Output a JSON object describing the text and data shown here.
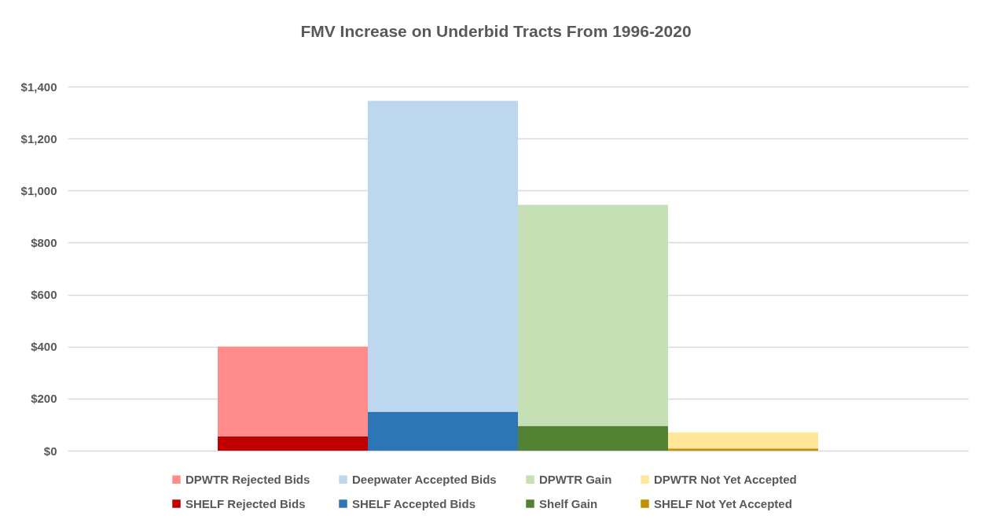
{
  "chart_data": {
    "type": "bar",
    "title": "FMV Increase on Underbid Tracts From 1996-2020",
    "categories": [
      null,
      null,
      null,
      null
    ],
    "stacked": true,
    "series": [
      {
        "name": "SHELF Rejected Bids",
        "color": "#c00000",
        "values": [
          55,
          null,
          null,
          null
        ]
      },
      {
        "name": "SHELF Accepted Bids",
        "color": "#2e75b6",
        "values": [
          null,
          150,
          null,
          null
        ]
      },
      {
        "name": "Shelf Gain",
        "color": "#548235",
        "values": [
          null,
          null,
          95,
          null
        ]
      },
      {
        "name": "SHELF Not Yet Accepted",
        "color": "#bf9000",
        "values": [
          null,
          null,
          null,
          8
        ]
      },
      {
        "name": "DPWTR Rejected Bids",
        "color": "#ff8b8b",
        "values": [
          345,
          null,
          null,
          null
        ]
      },
      {
        "name": "Deepwater Accepted Bids",
        "color": "#bdd7ee",
        "values": [
          null,
          1195,
          null,
          null
        ]
      },
      {
        "name": "DPWTR Gain",
        "color": "#c5e0b4",
        "values": [
          null,
          null,
          850,
          null
        ]
      },
      {
        "name": "DPWTR Not Yet Accepted",
        "color": "#ffe699",
        "values": [
          null,
          null,
          null,
          62
        ]
      }
    ],
    "ylim": [
      0,
      1400
    ],
    "yticks": [
      {
        "value": 0,
        "label": "$0"
      },
      {
        "value": 200,
        "label": "$200"
      },
      {
        "value": 400,
        "label": "$400"
      },
      {
        "value": 600,
        "label": "$600"
      },
      {
        "value": 800,
        "label": "$800"
      },
      {
        "value": 1000,
        "label": "$1,000"
      },
      {
        "value": 1200,
        "label": "$1,200"
      },
      {
        "value": 1400,
        "label": "$1,400"
      }
    ],
    "grid": "y",
    "legend": "bottom",
    "tick_labels": "y"
  }
}
